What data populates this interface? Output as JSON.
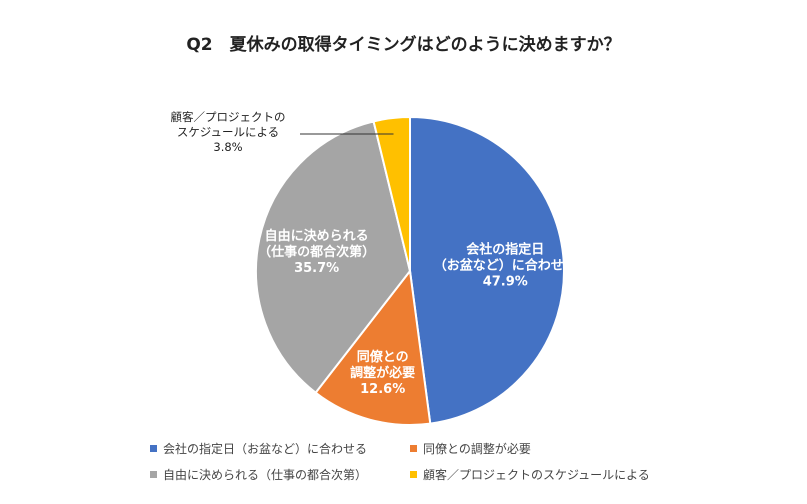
{
  "chart_data": {
    "type": "pie",
    "title": "Q2　夏休みの取得タイミングはどのように決めますか？",
    "slices": [
      {
        "label": "会社の指定日（お盆など）に合わせる",
        "slice_text": [
          "会社の指定日",
          "（お盆など）に合わせる"
        ],
        "value": 47.9,
        "value_text": "47.9%",
        "color": "#4472C4"
      },
      {
        "label": "同僚との調整が必要",
        "slice_text": [
          "同僚との",
          "調整が必要"
        ],
        "value": 12.6,
        "value_text": "12.6%",
        "color": "#ED7D31"
      },
      {
        "label": "自由に決められる（仕事の都合次第）",
        "slice_text": [
          "自由に決められる",
          "（仕事の都合次第）"
        ],
        "value": 35.7,
        "value_text": "35.7%",
        "color": "#A5A5A5"
      },
      {
        "label": "顧客／プロジェクトのスケジュールによる",
        "slice_text": [
          "顧客／プロジェクトの",
          "スケジュールによる"
        ],
        "value": 3.8,
        "value_text": "3.8%",
        "color": "#FFC000"
      }
    ],
    "start_angle": "12 o'clock",
    "direction": "clockwise",
    "legend_position": "bottom"
  }
}
